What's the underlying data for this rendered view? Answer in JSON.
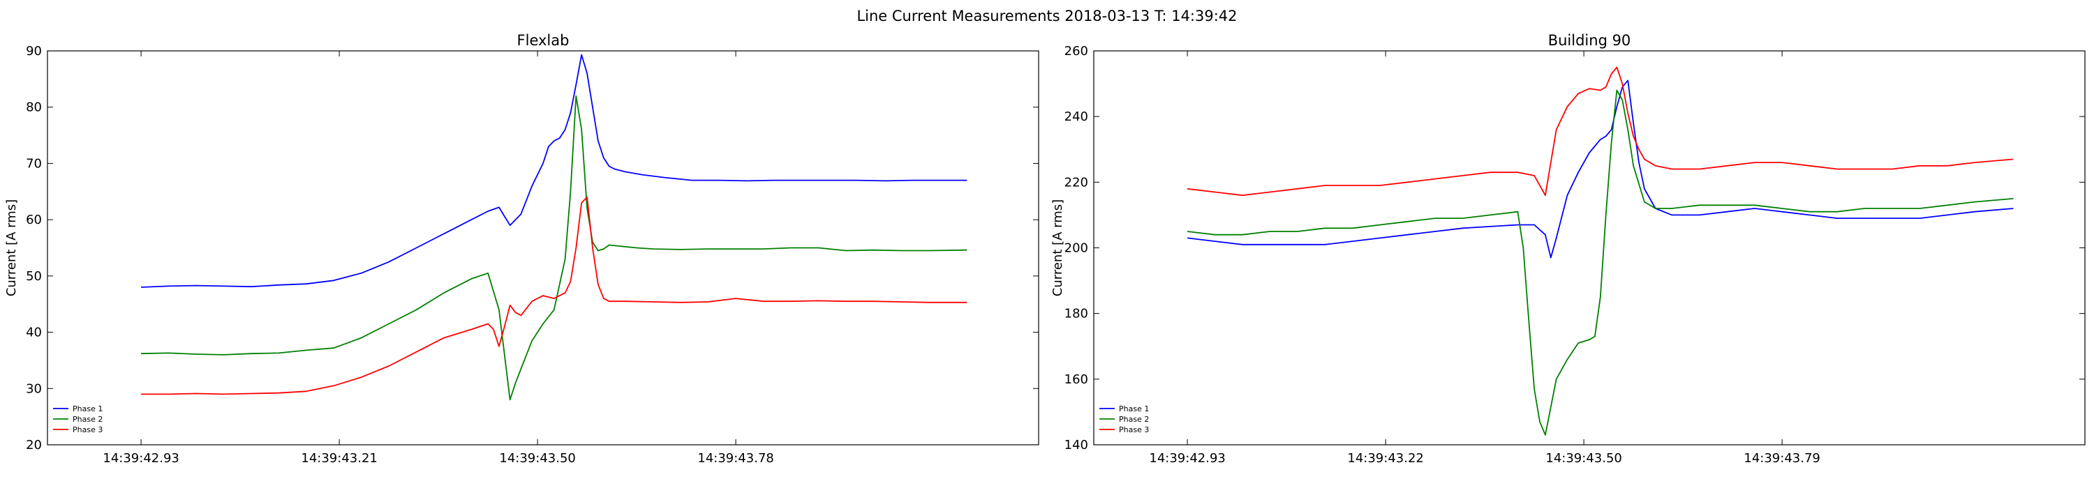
{
  "figure_title": "Line Current Measurements 2018-03-13 T: 14:39:42",
  "colors": {
    "phase_1": "#0000ff",
    "phase_2": "#008000",
    "phase_3": "#ff0000"
  },
  "chart_data": [
    {
      "type": "line",
      "title": "Flexlab",
      "xlabel": "",
      "ylabel": "Current [A rms]",
      "ylim": [
        20,
        90
      ],
      "yticks": [
        20,
        30,
        40,
        50,
        60,
        70,
        80,
        90
      ],
      "xlim": [
        0,
        180
      ],
      "xticks": [
        {
          "at": 17,
          "label": "14:39:42.93"
        },
        {
          "at": 53,
          "label": "14:39:43.21"
        },
        {
          "at": 89,
          "label": "14:39:43.50"
        },
        {
          "at": 125,
          "label": "14:39:43.78"
        }
      ],
      "legend": {
        "position": "lower-left",
        "entries": [
          "Phase 1",
          "Phase 2",
          "Phase 3"
        ]
      },
      "series": [
        {
          "name": "Phase 1",
          "color": "#0000ff",
          "x": [
            17,
            22,
            27,
            32,
            37,
            42,
            47,
            52,
            57,
            62,
            67,
            72,
            77,
            80,
            82,
            84,
            86,
            88,
            90,
            91,
            92,
            93,
            94,
            95,
            96,
            97,
            98,
            99,
            100,
            101,
            102,
            103,
            105,
            108,
            112,
            117,
            122,
            127,
            132,
            137,
            142,
            147,
            152,
            157,
            162,
            167
          ],
          "y": [
            48,
            48.2,
            48.3,
            48.2,
            48.1,
            48.4,
            48.6,
            49.2,
            50.5,
            52.5,
            55,
            57.5,
            60,
            61.5,
            62.2,
            59,
            61,
            66,
            70,
            73,
            74,
            74.5,
            76,
            79,
            84,
            89.3,
            86,
            80,
            74,
            71,
            69.5,
            69,
            68.5,
            68,
            67.5,
            67,
            67,
            66.9,
            67,
            67,
            67,
            67,
            66.9,
            67,
            67,
            67
          ]
        },
        {
          "name": "Phase 2",
          "color": "#008000",
          "x": [
            17,
            22,
            27,
            32,
            37,
            42,
            47,
            52,
            57,
            62,
            67,
            72,
            77,
            80,
            82,
            83,
            84,
            85,
            86,
            88,
            90,
            92,
            94,
            95,
            96,
            97,
            98,
            99,
            100,
            101,
            102,
            104,
            107,
            110,
            115,
            120,
            125,
            130,
            135,
            140,
            145,
            150,
            155,
            160,
            167
          ],
          "y": [
            36.2,
            36.3,
            36.1,
            36,
            36.2,
            36.3,
            36.8,
            37.2,
            39,
            41.5,
            44,
            47,
            49.5,
            50.5,
            44,
            36,
            28,
            31,
            33.5,
            38.5,
            41.5,
            44,
            53,
            65,
            82,
            76,
            62,
            56,
            54.5,
            54.8,
            55.5,
            55.3,
            55,
            54.8,
            54.7,
            54.8,
            54.8,
            54.8,
            55,
            55,
            54.5,
            54.6,
            54.5,
            54.5,
            54.6
          ]
        },
        {
          "name": "Phase 3",
          "color": "#ff0000",
          "x": [
            17,
            22,
            27,
            32,
            37,
            42,
            47,
            52,
            57,
            62,
            67,
            72,
            77,
            80,
            81,
            82,
            83,
            84,
            85,
            86,
            88,
            90,
            92,
            94,
            95,
            96,
            97,
            98,
            99,
            100,
            101,
            102,
            105,
            110,
            115,
            120,
            125,
            130,
            135,
            140,
            145,
            150,
            155,
            160,
            167
          ],
          "y": [
            29,
            29,
            29.1,
            29,
            29.1,
            29.2,
            29.5,
            30.5,
            32,
            34,
            36.5,
            39,
            40.5,
            41.5,
            40.5,
            37.5,
            41,
            44.8,
            43.5,
            43,
            45.5,
            46.5,
            46,
            47,
            49,
            55,
            63,
            64,
            55,
            48.5,
            46,
            45.5,
            45.5,
            45.4,
            45.3,
            45.4,
            46,
            45.5,
            45.5,
            45.6,
            45.5,
            45.5,
            45.4,
            45.3,
            45.3
          ]
        }
      ]
    },
    {
      "type": "line",
      "title": "Building 90",
      "xlabel": "",
      "ylabel": "Current [A rms]",
      "ylim": [
        140,
        260
      ],
      "yticks": [
        140,
        160,
        180,
        200,
        220,
        240,
        260
      ],
      "xlim": [
        0,
        180
      ],
      "xticks": [
        {
          "at": 17,
          "label": "14:39:42.93"
        },
        {
          "at": 53,
          "label": "14:39:43.22"
        },
        {
          "at": 89,
          "label": "14:39:43.50"
        },
        {
          "at": 125,
          "label": "14:39:43.79"
        }
      ],
      "legend": {
        "position": "lower-left",
        "entries": [
          "Phase 1",
          "Phase 2",
          "Phase 3"
        ]
      },
      "series": [
        {
          "name": "Phase 1",
          "color": "#0000ff",
          "x": [
            17,
            22,
            27,
            32,
            37,
            42,
            47,
            52,
            57,
            62,
            67,
            72,
            77,
            80,
            82,
            83,
            84,
            86,
            88,
            90,
            92,
            93,
            94,
            95,
            96,
            97,
            98,
            99,
            100,
            102,
            105,
            110,
            115,
            120,
            125,
            130,
            135,
            140,
            145,
            150,
            155,
            160,
            167
          ],
          "y": [
            203,
            202,
            201,
            201,
            201,
            201,
            202,
            203,
            204,
            205,
            206,
            206.5,
            207,
            207,
            204,
            197,
            203,
            216,
            223,
            229,
            233,
            234,
            236,
            243,
            249,
            251,
            238,
            226,
            218,
            212,
            210,
            210,
            211,
            212,
            211,
            210,
            209,
            209,
            209,
            209,
            210,
            211,
            212
          ]
        },
        {
          "name": "Phase 2",
          "color": "#008000",
          "x": [
            17,
            22,
            27,
            32,
            37,
            42,
            47,
            52,
            57,
            62,
            67,
            72,
            77,
            78,
            79,
            80,
            81,
            82,
            84,
            86,
            88,
            90,
            91,
            92,
            93,
            94,
            95,
            96,
            97,
            98,
            100,
            102,
            105,
            110,
            115,
            120,
            125,
            130,
            135,
            140,
            145,
            150,
            155,
            160,
            167
          ],
          "y": [
            205,
            204,
            204,
            205,
            205,
            206,
            206,
            207,
            208,
            209,
            209,
            210,
            211,
            200,
            178,
            157,
            147,
            143,
            160,
            166,
            171,
            172,
            173,
            185,
            210,
            232,
            248,
            245,
            236,
            225,
            214,
            212,
            212,
            213,
            213,
            213,
            212,
            211,
            211,
            212,
            212,
            212,
            213,
            214,
            215
          ]
        },
        {
          "name": "Phase 3",
          "color": "#ff0000",
          "x": [
            17,
            22,
            27,
            32,
            37,
            42,
            47,
            52,
            57,
            62,
            67,
            72,
            77,
            80,
            82,
            84,
            86,
            88,
            90,
            92,
            93,
            94,
            95,
            96,
            97,
            98,
            99,
            100,
            102,
            105,
            110,
            115,
            120,
            125,
            130,
            135,
            140,
            145,
            150,
            155,
            160,
            167
          ],
          "y": [
            218,
            217,
            216,
            217,
            218,
            219,
            219,
            219,
            220,
            221,
            222,
            223,
            223,
            222,
            216,
            236,
            243,
            247,
            248.5,
            248,
            249,
            253,
            255,
            250,
            241,
            234,
            230,
            227,
            225,
            224,
            224,
            225,
            226,
            226,
            225,
            224,
            224,
            224,
            225,
            225,
            226,
            227
          ]
        }
      ]
    }
  ]
}
